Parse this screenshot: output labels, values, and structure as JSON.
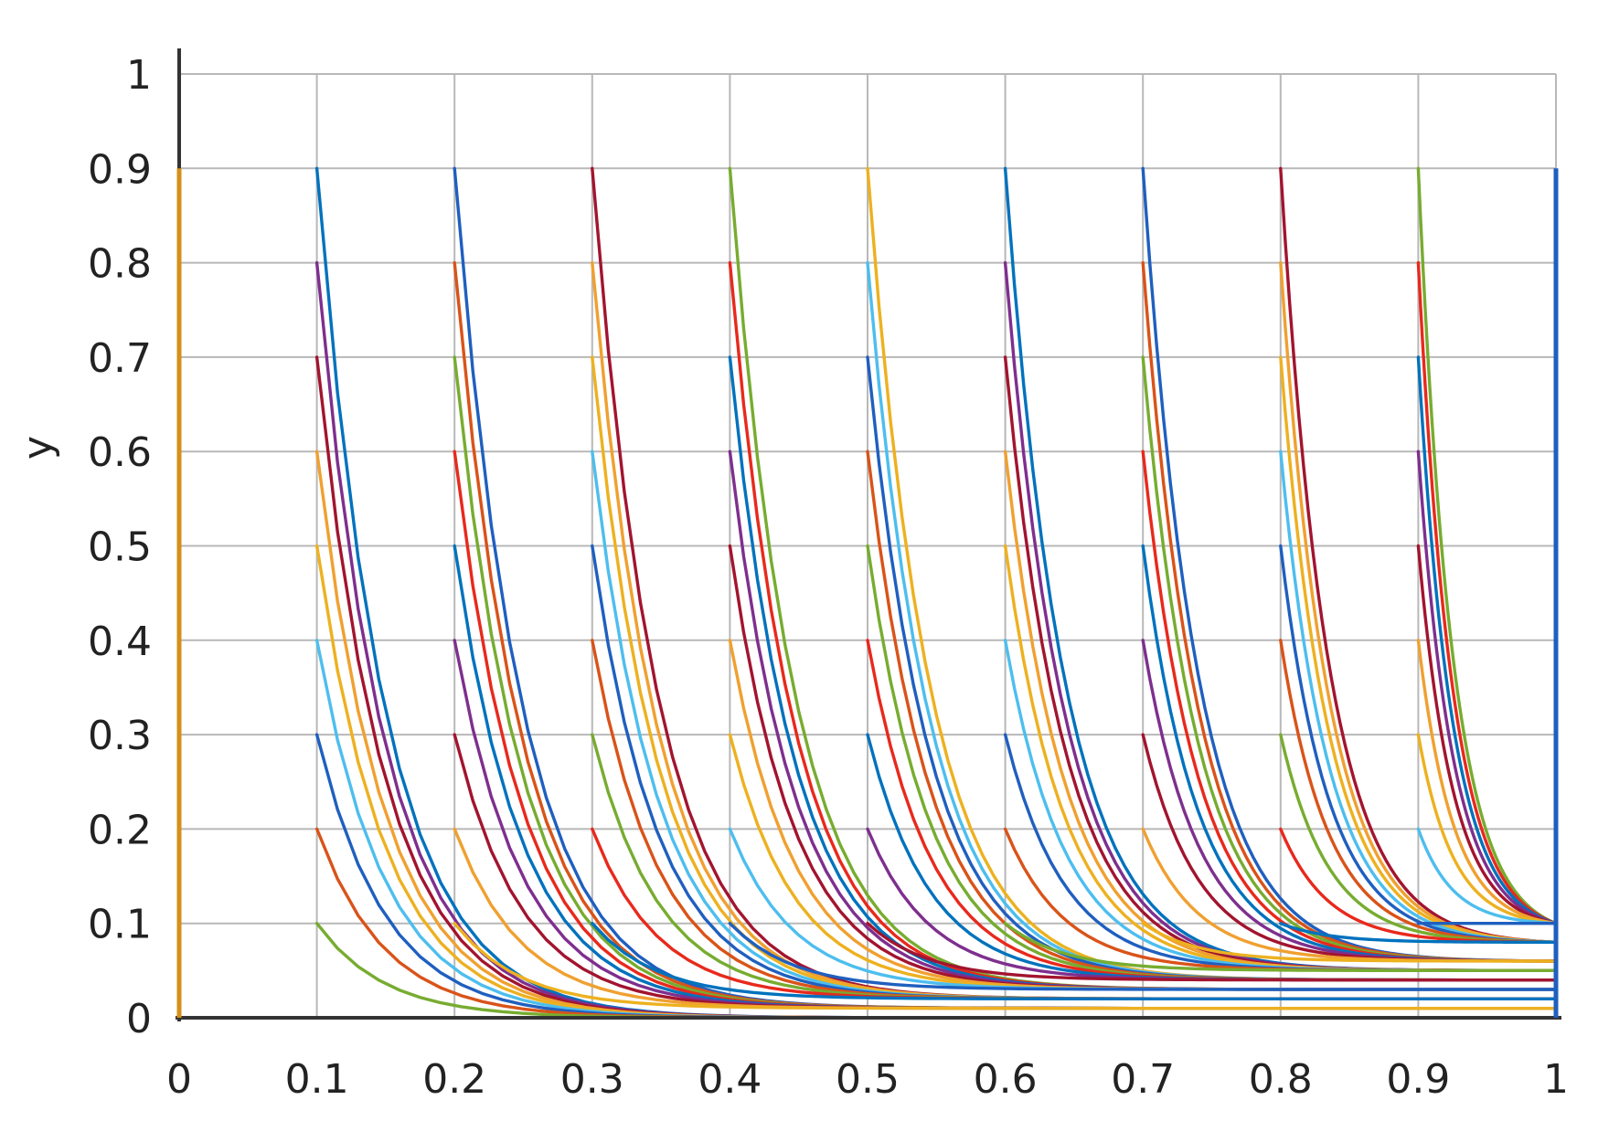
{
  "chart_data": {
    "type": "line",
    "title": "",
    "xlabel": "",
    "ylabel": "y",
    "xlim": [
      0,
      1
    ],
    "ylim": [
      0,
      1
    ],
    "grid": true,
    "legend": "none",
    "x_ticks": [
      {
        "value": 0,
        "label": "0"
      },
      {
        "value": 0.1,
        "label": "0.1"
      },
      {
        "value": 0.2,
        "label": "0.2"
      },
      {
        "value": 0.3,
        "label": "0.3"
      },
      {
        "value": 0.4,
        "label": "0.4"
      },
      {
        "value": 0.5,
        "label": "0.5"
      },
      {
        "value": 0.6,
        "label": "0.6"
      },
      {
        "value": 0.7,
        "label": "0.7"
      },
      {
        "value": 0.8,
        "label": "0.8"
      },
      {
        "value": 0.9,
        "label": "0.9"
      },
      {
        "value": 1,
        "label": "1"
      }
    ],
    "y_ticks": [
      {
        "value": 0,
        "label": "0"
      },
      {
        "value": 0.1,
        "label": "0.1"
      },
      {
        "value": 0.2,
        "label": "0.2"
      },
      {
        "value": 0.3,
        "label": "0.3"
      },
      {
        "value": 0.4,
        "label": "0.4"
      },
      {
        "value": 0.5,
        "label": "0.5"
      },
      {
        "value": 0.6,
        "label": "0.6"
      },
      {
        "value": 0.7,
        "label": "0.7"
      },
      {
        "value": 0.8,
        "label": "0.8"
      },
      {
        "value": 0.9,
        "label": "0.9"
      },
      {
        "value": 1,
        "label": "1"
      }
    ],
    "colors": [
      "#0072bd",
      "#d95319",
      "#edb120",
      "#7e2f8e",
      "#77ac30",
      "#4dbeee",
      "#a2142f",
      "#e8291c",
      "#1f5fbf",
      "#f0a030"
    ],
    "series": [
      {
        "x": [
          0.1,
          1
        ],
        "y": [
          0.9,
          0.0
        ]
      },
      {
        "x": [
          0.1,
          1
        ],
        "y": [
          0.8,
          0.0
        ]
      },
      {
        "x": [
          0.1,
          1
        ],
        "y": [
          0.7,
          0.0
        ]
      },
      {
        "x": [
          0.1,
          1
        ],
        "y": [
          0.6,
          0.0
        ]
      },
      {
        "x": [
          0.1,
          1
        ],
        "y": [
          0.5,
          0.0
        ]
      },
      {
        "x": [
          0.1,
          1
        ],
        "y": [
          0.4,
          0.0
        ]
      },
      {
        "x": [
          0.1,
          1
        ],
        "y": [
          0.3,
          0.0
        ]
      },
      {
        "x": [
          0.1,
          1
        ],
        "y": [
          0.2,
          0.0
        ]
      },
      {
        "x": [
          0.1,
          1
        ],
        "y": [
          0.1,
          0.0
        ]
      },
      {
        "x": [
          0.2,
          1
        ],
        "y": [
          0.9,
          0.01
        ]
      },
      {
        "x": [
          0.2,
          1
        ],
        "y": [
          0.8,
          0.01
        ]
      },
      {
        "x": [
          0.2,
          1
        ],
        "y": [
          0.7,
          0.01
        ]
      },
      {
        "x": [
          0.2,
          1
        ],
        "y": [
          0.6,
          0.01
        ]
      },
      {
        "x": [
          0.2,
          1
        ],
        "y": [
          0.5,
          0.01
        ]
      },
      {
        "x": [
          0.2,
          1
        ],
        "y": [
          0.4,
          0.01
        ]
      },
      {
        "x": [
          0.2,
          1
        ],
        "y": [
          0.3,
          0.01
        ]
      },
      {
        "x": [
          0.2,
          1
        ],
        "y": [
          0.2,
          0.01
        ]
      },
      {
        "x": [
          0.2,
          1
        ],
        "y": [
          0.1,
          0.01
        ]
      },
      {
        "x": [
          0.3,
          1
        ],
        "y": [
          0.9,
          0.02
        ]
      },
      {
        "x": [
          0.3,
          1
        ],
        "y": [
          0.8,
          0.02
        ]
      },
      {
        "x": [
          0.3,
          1
        ],
        "y": [
          0.7,
          0.02
        ]
      },
      {
        "x": [
          0.3,
          1
        ],
        "y": [
          0.6,
          0.02
        ]
      },
      {
        "x": [
          0.3,
          1
        ],
        "y": [
          0.5,
          0.02
        ]
      },
      {
        "x": [
          0.3,
          1
        ],
        "y": [
          0.4,
          0.02
        ]
      },
      {
        "x": [
          0.3,
          1
        ],
        "y": [
          0.3,
          0.02
        ]
      },
      {
        "x": [
          0.3,
          1
        ],
        "y": [
          0.2,
          0.02
        ]
      },
      {
        "x": [
          0.3,
          1
        ],
        "y": [
          0.1,
          0.02
        ]
      },
      {
        "x": [
          0.4,
          1
        ],
        "y": [
          0.9,
          0.03
        ]
      },
      {
        "x": [
          0.4,
          1
        ],
        "y": [
          0.8,
          0.03
        ]
      },
      {
        "x": [
          0.4,
          1
        ],
        "y": [
          0.7,
          0.03
        ]
      },
      {
        "x": [
          0.4,
          1
        ],
        "y": [
          0.6,
          0.03
        ]
      },
      {
        "x": [
          0.4,
          1
        ],
        "y": [
          0.5,
          0.03
        ]
      },
      {
        "x": [
          0.4,
          1
        ],
        "y": [
          0.4,
          0.03
        ]
      },
      {
        "x": [
          0.4,
          1
        ],
        "y": [
          0.3,
          0.03
        ]
      },
      {
        "x": [
          0.4,
          1
        ],
        "y": [
          0.2,
          0.03
        ]
      },
      {
        "x": [
          0.4,
          1
        ],
        "y": [
          0.1,
          0.03
        ]
      },
      {
        "x": [
          0.5,
          1
        ],
        "y": [
          0.9,
          0.04
        ]
      },
      {
        "x": [
          0.5,
          1
        ],
        "y": [
          0.8,
          0.04
        ]
      },
      {
        "x": [
          0.5,
          1
        ],
        "y": [
          0.7,
          0.04
        ]
      },
      {
        "x": [
          0.5,
          1
        ],
        "y": [
          0.6,
          0.04
        ]
      },
      {
        "x": [
          0.5,
          1
        ],
        "y": [
          0.5,
          0.04
        ]
      },
      {
        "x": [
          0.5,
          1
        ],
        "y": [
          0.4,
          0.04
        ]
      },
      {
        "x": [
          0.5,
          1
        ],
        "y": [
          0.3,
          0.04
        ]
      },
      {
        "x": [
          0.5,
          1
        ],
        "y": [
          0.2,
          0.04
        ]
      },
      {
        "x": [
          0.5,
          1
        ],
        "y": [
          0.1,
          0.04
        ]
      },
      {
        "x": [
          0.6,
          1
        ],
        "y": [
          0.9,
          0.05
        ]
      },
      {
        "x": [
          0.6,
          1
        ],
        "y": [
          0.8,
          0.05
        ]
      },
      {
        "x": [
          0.6,
          1
        ],
        "y": [
          0.7,
          0.05
        ]
      },
      {
        "x": [
          0.6,
          1
        ],
        "y": [
          0.6,
          0.05
        ]
      },
      {
        "x": [
          0.6,
          1
        ],
        "y": [
          0.5,
          0.05
        ]
      },
      {
        "x": [
          0.6,
          1
        ],
        "y": [
          0.4,
          0.05
        ]
      },
      {
        "x": [
          0.6,
          1
        ],
        "y": [
          0.3,
          0.05
        ]
      },
      {
        "x": [
          0.6,
          1
        ],
        "y": [
          0.2,
          0.05
        ]
      },
      {
        "x": [
          0.6,
          1
        ],
        "y": [
          0.1,
          0.05
        ]
      },
      {
        "x": [
          0.7,
          1
        ],
        "y": [
          0.9,
          0.06
        ]
      },
      {
        "x": [
          0.7,
          1
        ],
        "y": [
          0.8,
          0.06
        ]
      },
      {
        "x": [
          0.7,
          1
        ],
        "y": [
          0.7,
          0.06
        ]
      },
      {
        "x": [
          0.7,
          1
        ],
        "y": [
          0.6,
          0.06
        ]
      },
      {
        "x": [
          0.7,
          1
        ],
        "y": [
          0.5,
          0.06
        ]
      },
      {
        "x": [
          0.7,
          1
        ],
        "y": [
          0.4,
          0.06
        ]
      },
      {
        "x": [
          0.7,
          1
        ],
        "y": [
          0.3,
          0.06
        ]
      },
      {
        "x": [
          0.7,
          1
        ],
        "y": [
          0.2,
          0.06
        ]
      },
      {
        "x": [
          0.7,
          1
        ],
        "y": [
          0.1,
          0.06
        ]
      },
      {
        "x": [
          0.8,
          1
        ],
        "y": [
          0.9,
          0.08
        ]
      },
      {
        "x": [
          0.8,
          1
        ],
        "y": [
          0.8,
          0.08
        ]
      },
      {
        "x": [
          0.8,
          1
        ],
        "y": [
          0.7,
          0.08
        ]
      },
      {
        "x": [
          0.8,
          1
        ],
        "y": [
          0.6,
          0.08
        ]
      },
      {
        "x": [
          0.8,
          1
        ],
        "y": [
          0.5,
          0.08
        ]
      },
      {
        "x": [
          0.8,
          1
        ],
        "y": [
          0.4,
          0.08
        ]
      },
      {
        "x": [
          0.8,
          1
        ],
        "y": [
          0.3,
          0.08
        ]
      },
      {
        "x": [
          0.8,
          1
        ],
        "y": [
          0.2,
          0.08
        ]
      },
      {
        "x": [
          0.8,
          1
        ],
        "y": [
          0.1,
          0.08
        ]
      },
      {
        "x": [
          0.9,
          1
        ],
        "y": [
          0.9,
          0.1
        ]
      },
      {
        "x": [
          0.9,
          1
        ],
        "y": [
          0.8,
          0.1
        ]
      },
      {
        "x": [
          0.9,
          1
        ],
        "y": [
          0.7,
          0.1
        ]
      },
      {
        "x": [
          0.9,
          1
        ],
        "y": [
          0.6,
          0.1
        ]
      },
      {
        "x": [
          0.9,
          1
        ],
        "y": [
          0.5,
          0.1
        ]
      },
      {
        "x": [
          0.9,
          1
        ],
        "y": [
          0.4,
          0.1
        ]
      },
      {
        "x": [
          0.9,
          1
        ],
        "y": [
          0.3,
          0.1
        ]
      },
      {
        "x": [
          0.9,
          1
        ],
        "y": [
          0.2,
          0.1
        ]
      },
      {
        "x": [
          0.9,
          1
        ],
        "y": [
          0.1,
          0.1
        ]
      }
    ]
  }
}
